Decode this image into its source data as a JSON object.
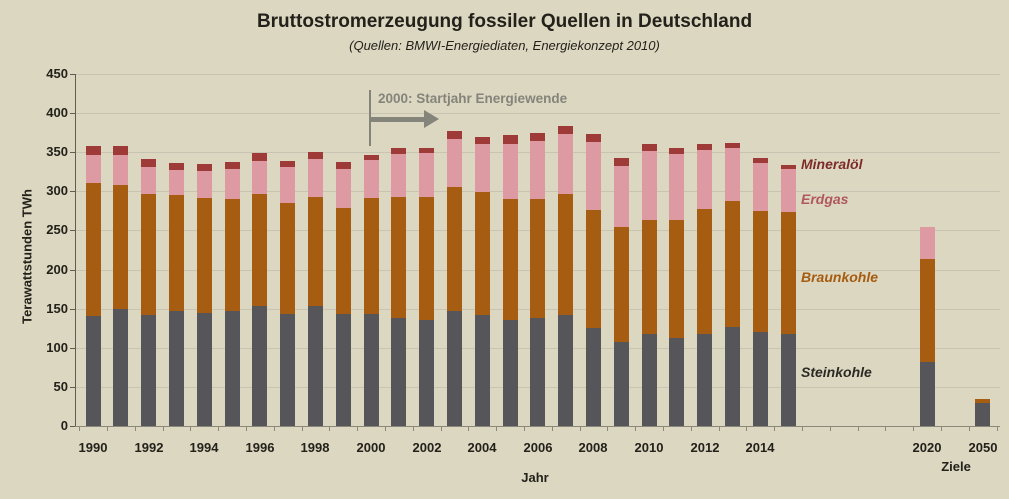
{
  "title": "Bruttostromerzeugung fossiler Quellen in Deutschland",
  "subtitle": "(Quellen: BMWI-Energiediaten, Energiekonzept 2010)",
  "annotation": {
    "label": "2000: Startjahr Energiewende"
  },
  "axis": {
    "x_title": "Jahr",
    "y_title": "Terawattstunden TWh",
    "targets_label": "Ziele"
  },
  "colors": {
    "background": "#dcd7c1",
    "gridline": "#c8c4b1",
    "axis_text": "#23211a",
    "annotation_gray": "#85847b",
    "steinkohle": "#55555a",
    "braunkohle": "#a75d11",
    "erdgas": "#de9aa2",
    "mineraloel": "#9e3a38"
  },
  "chart_data": {
    "type": "bar",
    "stacked": true,
    "unit": "TWh",
    "title": "Bruttostromerzeugung fossiler Quellen in Deutschland",
    "xlabel": "Jahr",
    "ylabel": "Terawattstunden TWh",
    "ylim": [
      0,
      450
    ],
    "ytick_step": 50,
    "grid": true,
    "legend_position": "right-inline",
    "categories": [
      "1990",
      "1991",
      "1992",
      "1993",
      "1994",
      "1995",
      "1996",
      "1997",
      "1998",
      "1999",
      "2000",
      "2001",
      "2002",
      "2003",
      "2004",
      "2005",
      "2006",
      "2007",
      "2008",
      "2009",
      "2010",
      "2011",
      "2012",
      "2013",
      "2014",
      "2015",
      "2020",
      "2050"
    ],
    "category_slots": [
      0,
      1,
      2,
      3,
      4,
      5,
      6,
      7,
      8,
      9,
      10,
      11,
      12,
      13,
      14,
      15,
      16,
      17,
      18,
      19,
      20,
      21,
      22,
      23,
      24,
      25,
      30,
      32
    ],
    "x_tick_labels": [
      {
        "label": "1990",
        "slot": 0
      },
      {
        "label": "1992",
        "slot": 2
      },
      {
        "label": "1994",
        "slot": 4
      },
      {
        "label": "1996",
        "slot": 6
      },
      {
        "label": "1998",
        "slot": 8
      },
      {
        "label": "2000",
        "slot": 10
      },
      {
        "label": "2002",
        "slot": 12
      },
      {
        "label": "2004",
        "slot": 14
      },
      {
        "label": "2006",
        "slot": 16
      },
      {
        "label": "2008",
        "slot": 18
      },
      {
        "label": "2010",
        "slot": 20
      },
      {
        "label": "2012",
        "slot": 22
      },
      {
        "label": "2014",
        "slot": 24
      },
      {
        "label": "2020",
        "slot": 30
      },
      {
        "label": "2050",
        "slot": 32
      }
    ],
    "series": [
      {
        "name": "Steinkohle",
        "key": "steinkohle",
        "color": "#55555a",
        "label_color": "#2b2a24",
        "values": [
          141,
          150,
          142,
          147,
          144,
          147,
          153,
          143,
          154,
          143,
          143,
          138,
          135,
          147,
          142,
          135,
          138,
          142,
          125,
          108,
          117,
          113,
          117,
          127,
          120,
          118,
          82,
          29
        ]
      },
      {
        "name": "Braunkohle",
        "key": "braunkohle",
        "color": "#a75d11",
        "label_color": "#a55c10",
        "values": [
          170,
          158,
          155,
          148,
          148,
          143,
          144,
          142,
          139,
          136,
          148,
          155,
          158,
          158,
          157,
          155,
          152,
          155,
          151,
          146,
          146,
          150,
          160,
          161,
          155,
          155,
          131,
          6
        ]
      },
      {
        "name": "Erdgas",
        "key": "erdgas",
        "color": "#de9aa2",
        "label_color": "#b05860",
        "values": [
          36,
          38,
          34,
          32,
          34,
          39,
          42,
          46,
          48,
          50,
          49,
          55,
          56,
          62,
          61,
          71,
          74,
          76,
          87,
          79,
          89,
          85,
          76,
          67,
          61,
          55,
          41,
          0
        ]
      },
      {
        "name": "Mineralöl",
        "key": "mineraloel",
        "color": "#9e3a38",
        "label_color": "#7d2b29",
        "values": [
          11,
          12,
          10,
          9,
          9,
          9,
          10,
          8,
          9,
          8,
          6,
          7,
          7,
          10,
          10,
          11,
          10,
          10,
          10,
          9,
          9,
          7,
          8,
          7,
          6,
          6,
          0,
          0
        ]
      }
    ],
    "legend": [
      "Mineralöl",
      "Erdgas",
      "Braunkohle",
      "Steinkohle"
    ],
    "annotation": {
      "label": "2000: Startjahr Energiewende",
      "at_category": "2000"
    }
  }
}
